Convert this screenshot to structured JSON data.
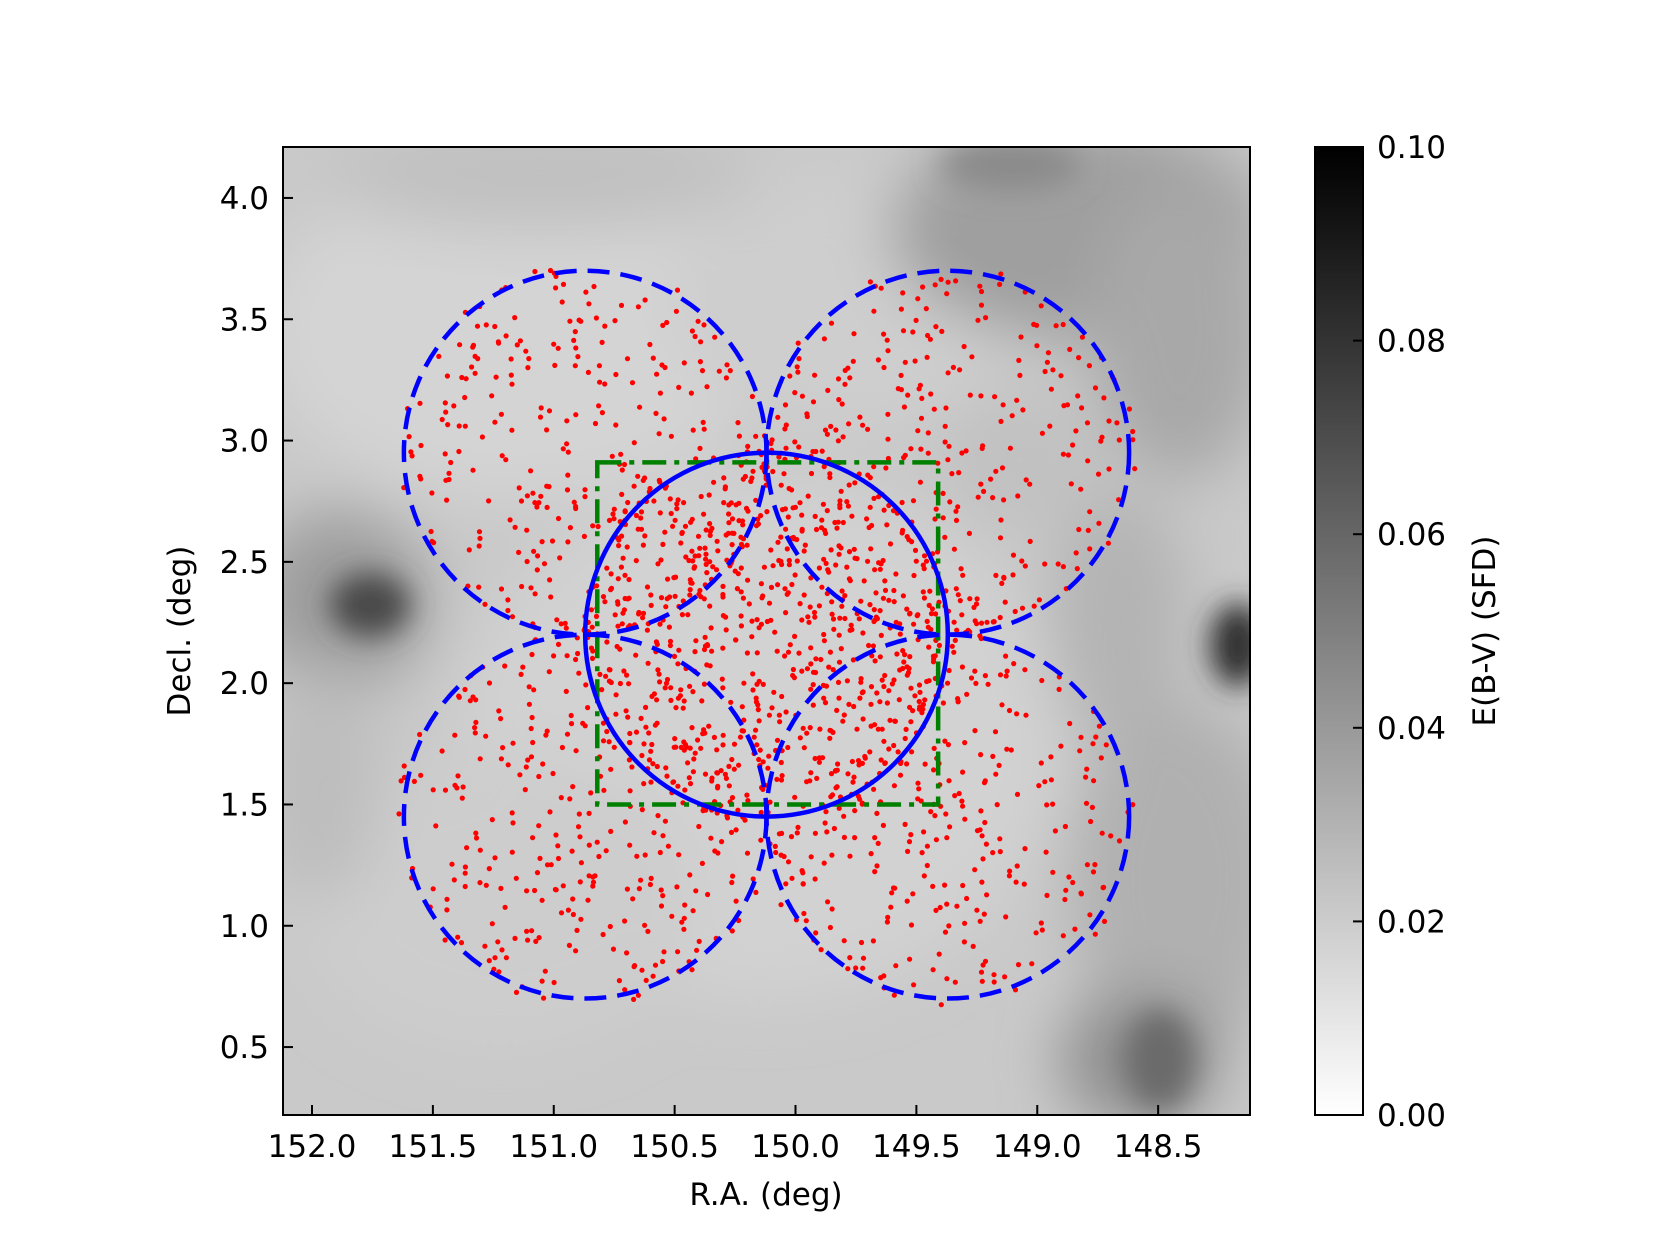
{
  "chart_data": [
    {
      "type": "scatter",
      "title": "",
      "xlabel": "R.A. (deg)",
      "ylabel": "Decl. (deg)",
      "xlim": [
        152.12,
        148.12
      ],
      "ylim": [
        0.22,
        4.21
      ],
      "x_inverted": true,
      "xticks": [
        "152.0",
        "151.5",
        "151.0",
        "150.5",
        "150.0",
        "149.5",
        "149.0",
        "148.5"
      ],
      "yticks": [
        "0.5",
        "1.0",
        "1.5",
        "2.0",
        "2.5",
        "3.0",
        "3.5",
        "4.0"
      ],
      "grid": false,
      "background": "grayscale dust-extinction map E(B-V) (SFD)",
      "circles": [
        {
          "style": "dashed",
          "color": "#0000ff",
          "ra": 150.87,
          "dec": 2.95,
          "radius_deg": 0.75
        },
        {
          "style": "dashed",
          "color": "#0000ff",
          "ra": 149.37,
          "dec": 2.95,
          "radius_deg": 0.75
        },
        {
          "style": "dashed",
          "color": "#0000ff",
          "ra": 150.87,
          "dec": 1.45,
          "radius_deg": 0.75
        },
        {
          "style": "dashed",
          "color": "#0000ff",
          "ra": 149.37,
          "dec": 1.45,
          "radius_deg": 0.75
        },
        {
          "style": "solid",
          "color": "#0000ff",
          "ra": 150.12,
          "dec": 2.2,
          "radius_deg": 0.75
        }
      ],
      "rectangle": {
        "style": "dash-dot",
        "color": "#008000",
        "ra_min": 149.41,
        "ra_max": 150.82,
        "dec_min": 1.5,
        "dec_max": 2.91
      },
      "points": {
        "color": "#ff0000",
        "approx_count": 2000,
        "distribution": "concentrated inside the five circles, densest in the central solid circle"
      }
    },
    {
      "type": "heatmap",
      "role": "colorbar",
      "label": "E(B-V) (SFD)",
      "range": [
        0.0,
        0.1
      ],
      "ticks": [
        "0.00",
        "0.02",
        "0.04",
        "0.06",
        "0.08",
        "0.10"
      ],
      "colormap": "white-to-black"
    }
  ]
}
